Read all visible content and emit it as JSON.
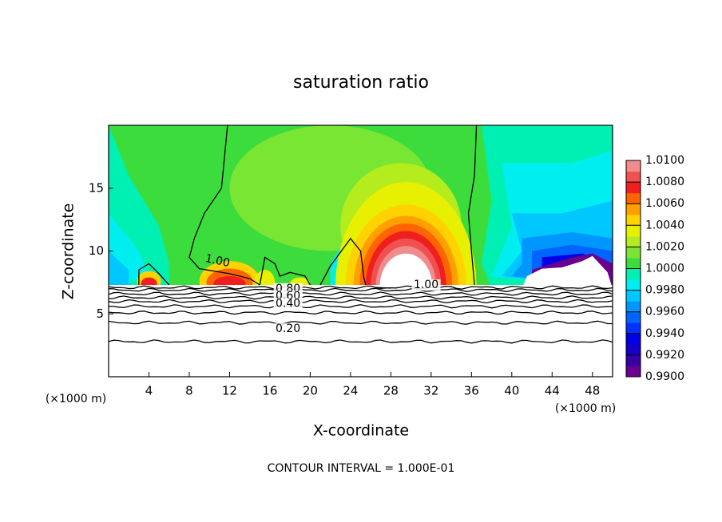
{
  "chart_data": {
    "type": "contour",
    "title": "saturation ratio",
    "x_label": "X-coordinate",
    "y_label": "Z-coordinate",
    "x_unit_label": "(×1000 m)",
    "x_unit_label_right": "(×1000 m)",
    "footnote": "CONTOUR INTERVAL = 1.000E-01",
    "xlim": [
      0,
      50
    ],
    "xticks": [
      4,
      8,
      12,
      16,
      20,
      24,
      28,
      32,
      36,
      40,
      44,
      48
    ],
    "ylim": [
      0,
      20
    ],
    "yticks": [
      5,
      10,
      15
    ],
    "clim": [
      0.99,
      1.01
    ],
    "cticks": [
      {
        "value": 0.99,
        "label": "0.9900"
      },
      {
        "value": 0.992,
        "label": "0.9920"
      },
      {
        "value": 0.994,
        "label": "0.9940"
      },
      {
        "value": 0.996,
        "label": "0.9960"
      },
      {
        "value": 0.998,
        "label": "0.9980"
      },
      {
        "value": 1.0,
        "label": "1.0000"
      },
      {
        "value": 1.002,
        "label": "1.0020"
      },
      {
        "value": 1.004,
        "label": "1.0040"
      },
      {
        "value": 1.006,
        "label": "1.0060"
      },
      {
        "value": 1.008,
        "label": "1.0080"
      },
      {
        "value": 1.01,
        "label": "1.0100"
      }
    ],
    "colorscale": [
      "#6a0090",
      "#3a00a8",
      "#1400c8",
      "#0000e6",
      "#0032ff",
      "#0064ff",
      "#0096ff",
      "#00c8ff",
      "#00eef0",
      "#00f0b4",
      "#3cdc3c",
      "#78e632",
      "#b4ec1e",
      "#e6f000",
      "#ffd200",
      "#ffa000",
      "#ff6400",
      "#f01e1e",
      "#f05050",
      "#f08c8c"
    ],
    "contour_labels": [
      {
        "value": 1.0,
        "label": "1.00"
      },
      {
        "value": 0.8,
        "label": "0.80"
      },
      {
        "value": 0.6,
        "label": "0.60"
      },
      {
        "value": 0.4,
        "label": "0.40"
      },
      {
        "value": 0.2,
        "label": "0.20"
      },
      {
        "value": 1.0,
        "label": "1.00"
      }
    ]
  }
}
